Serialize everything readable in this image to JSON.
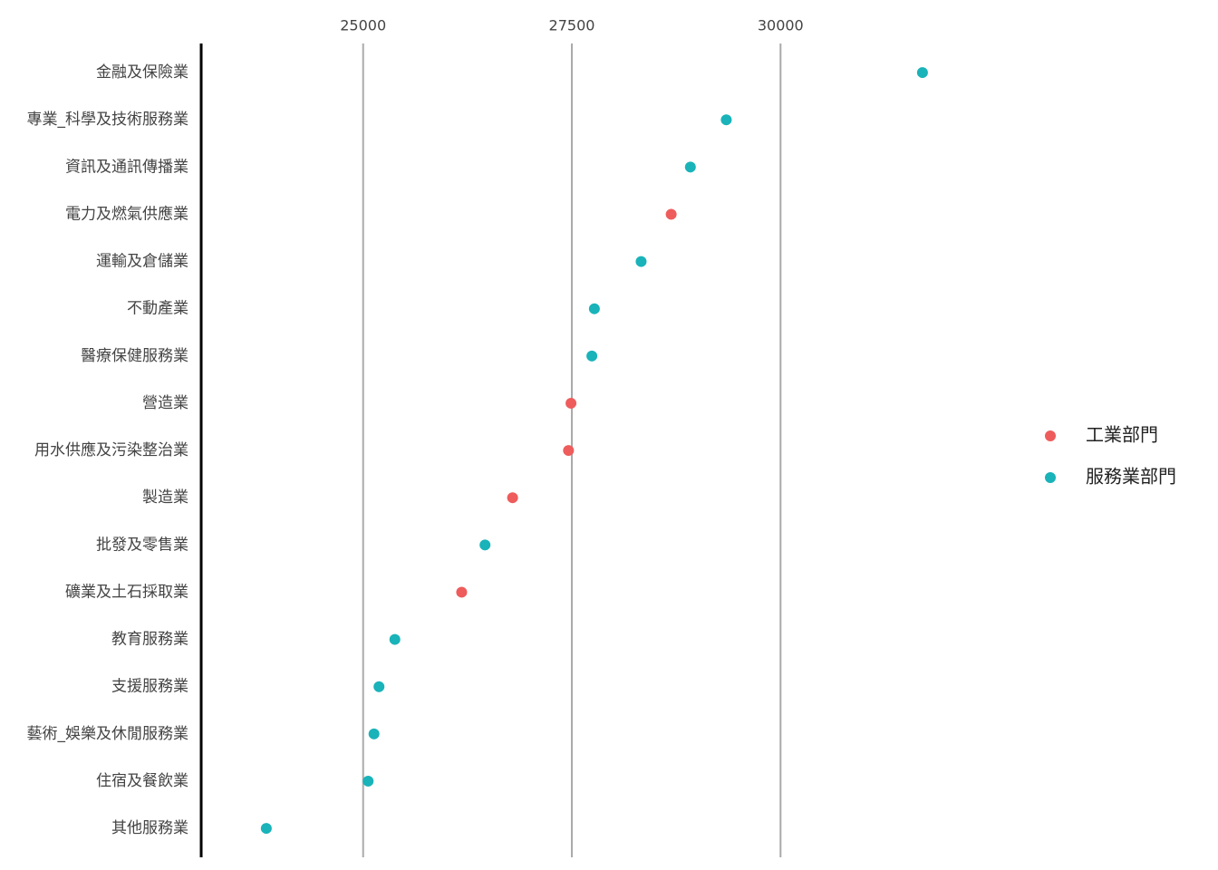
{
  "chart_data": {
    "type": "dot",
    "categories": [
      "金融及保險業",
      "專業_科學及技術服務業",
      "資訊及通訊傳播業",
      "電力及燃氣供應業",
      "運輸及倉儲業",
      "不動產業",
      "醫療保健服務業",
      "營造業",
      "用水供應及污染整治業",
      "製造業",
      "批發及零售業",
      "礦業及土石採取業",
      "教育服務業",
      "支援服務業",
      "藝術_娛樂及休閒服務業",
      "住宿及餐飲業",
      "其他服務業"
    ],
    "series": [
      {
        "name": "工業部門",
        "color": "#ee5c5c",
        "values": [
          null,
          null,
          null,
          28690,
          null,
          null,
          null,
          27490,
          27460,
          26790,
          null,
          26180,
          null,
          null,
          null,
          null,
          null
        ]
      },
      {
        "name": "服務業部門",
        "color": "#19b3b9",
        "values": [
          31700,
          29350,
          28920,
          null,
          28330,
          27770,
          27740,
          null,
          null,
          null,
          26460,
          null,
          25380,
          25190,
          25130,
          25060,
          23840
        ]
      }
    ],
    "xlim": [
      23060,
      32700
    ],
    "xticks": [
      25000,
      27500,
      30000
    ],
    "grid": true
  }
}
